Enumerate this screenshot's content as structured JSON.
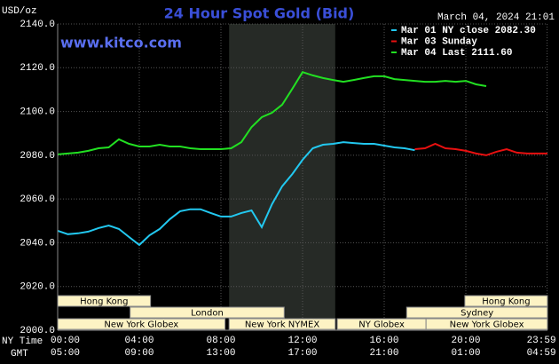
{
  "chart_data": {
    "type": "line",
    "title": "24 Hour Spot Gold (Bid)",
    "unit_label": "USD/oz",
    "timestamp": "March 04, 2024 21:01",
    "website": "www.kitco.com",
    "x_axis_labels": [
      "NY Time",
      "GMT"
    ],
    "x": [
      0,
      0.5,
      1,
      1.5,
      2,
      2.5,
      3,
      3.5,
      4,
      4.5,
      5,
      5.5,
      6,
      6.5,
      7,
      7.5,
      8,
      8.5,
      9,
      9.5,
      10,
      10.5,
      11,
      11.5,
      12,
      12.5,
      13,
      13.5,
      14,
      14.5,
      15,
      15.5,
      16,
      16.5,
      17,
      17.5,
      18,
      18.5,
      19,
      19.5,
      20,
      20.5,
      21,
      21.5,
      22,
      22.5,
      23,
      23.5,
      24
    ],
    "series": [
      {
        "name": "Mar 01 NY close 2082.30",
        "color": "#22c8f0",
        "values": [
          2045.5,
          2043.9,
          2044.3,
          2045.1,
          2046.7,
          2047.9,
          2046.3,
          2042.6,
          2039.0,
          2043.4,
          2046.3,
          2050.8,
          2054.4,
          2055.3,
          2055.3,
          2053.6,
          2052.0,
          2052.0,
          2053.6,
          2054.8,
          2047.1,
          2057.6,
          2065.8,
          2071.4,
          2077.9,
          2083.2,
          2084.8,
          2085.2,
          2086.0,
          2085.6,
          2085.2,
          2085.2,
          2084.4,
          2083.6,
          2083.2,
          2082.3,
          null,
          null,
          null,
          null,
          null,
          null,
          null,
          null,
          null,
          null,
          null,
          null,
          null
        ]
      },
      {
        "name": "Mar 03 Sunday",
        "color": "#e81010",
        "values": [
          null,
          null,
          null,
          null,
          null,
          null,
          null,
          null,
          null,
          null,
          null,
          null,
          null,
          null,
          null,
          null,
          null,
          null,
          null,
          null,
          null,
          null,
          null,
          null,
          null,
          null,
          null,
          null,
          null,
          null,
          null,
          null,
          null,
          null,
          null,
          2082.8,
          2083.2,
          2085.2,
          2083.2,
          2082.8,
          2082.0,
          2080.8,
          2080.0,
          2081.6,
          2082.8,
          2081.2,
          2080.8,
          2080.8,
          2080.8
        ]
      },
      {
        "name": "Mar 04 Last 2111.60",
        "color": "#22e022",
        "values": [
          2080.4,
          2080.8,
          2081.2,
          2082.0,
          2083.2,
          2083.6,
          2087.3,
          2085.2,
          2084.0,
          2084.0,
          2084.8,
          2084.0,
          2084.0,
          2083.2,
          2082.8,
          2082.8,
          2082.8,
          2083.2,
          2086.0,
          2092.9,
          2097.4,
          2099.4,
          2103.1,
          2110.4,
          2118.0,
          2116.5,
          2115.3,
          2114.4,
          2113.6,
          2114.4,
          2115.3,
          2116.1,
          2116.1,
          2114.8,
          2114.4,
          2114.0,
          2113.6,
          2113.6,
          2114.0,
          2113.6,
          2114.0,
          2112.4,
          2111.6,
          null,
          null,
          null,
          null,
          null,
          null
        ]
      }
    ],
    "xlim": [
      0,
      24
    ],
    "ylim": [
      2000,
      2140
    ],
    "yticks": [
      {
        "value": 2000,
        "label": "2000.0"
      },
      {
        "value": 2020,
        "label": "2020.0"
      },
      {
        "value": 2040,
        "label": "2040.0"
      },
      {
        "value": 2060,
        "label": "2060.0"
      },
      {
        "value": 2080,
        "label": "2080.0"
      },
      {
        "value": 2100,
        "label": "2100.0"
      },
      {
        "value": 2120,
        "label": "2120.0"
      },
      {
        "value": 2140,
        "label": "2140.0"
      }
    ],
    "xticks": [
      {
        "value": 0,
        "label": "00:00"
      },
      {
        "value": 4,
        "label": "04:00"
      },
      {
        "value": 8,
        "label": "08:00"
      },
      {
        "value": 12,
        "label": "12:00"
      },
      {
        "value": 16,
        "label": "16:00"
      },
      {
        "value": 20,
        "label": "20:00"
      },
      {
        "value": 23.983,
        "label": "23:59"
      }
    ],
    "gmt_labels": [
      "05:00",
      "09:00",
      "13:00",
      "17:00",
      "21:00",
      "01:00",
      "04:59"
    ],
    "highlight": [
      8.4,
      13.6
    ],
    "grid": true,
    "sessions": [
      [
        {
          "label": "Hong Kong",
          "start": 0,
          "end": 4.55
        },
        {
          "label": "Hong Kong",
          "start": 19.95,
          "end": 24
        }
      ],
      [
        {
          "label": "London",
          "start": 3.55,
          "end": 11.1
        },
        {
          "label": "Sydney",
          "start": 17.1,
          "end": 24
        }
      ],
      [
        {
          "label": "New York Globex",
          "start": 0,
          "end": 8.2
        },
        {
          "label": "New York NYMEX",
          "start": 8.4,
          "end": 13.6
        },
        {
          "label": "NY Globex",
          "start": 13.7,
          "end": 18.05
        },
        {
          "label": "New York Globex",
          "start": 18.05,
          "end": 24
        }
      ]
    ]
  }
}
